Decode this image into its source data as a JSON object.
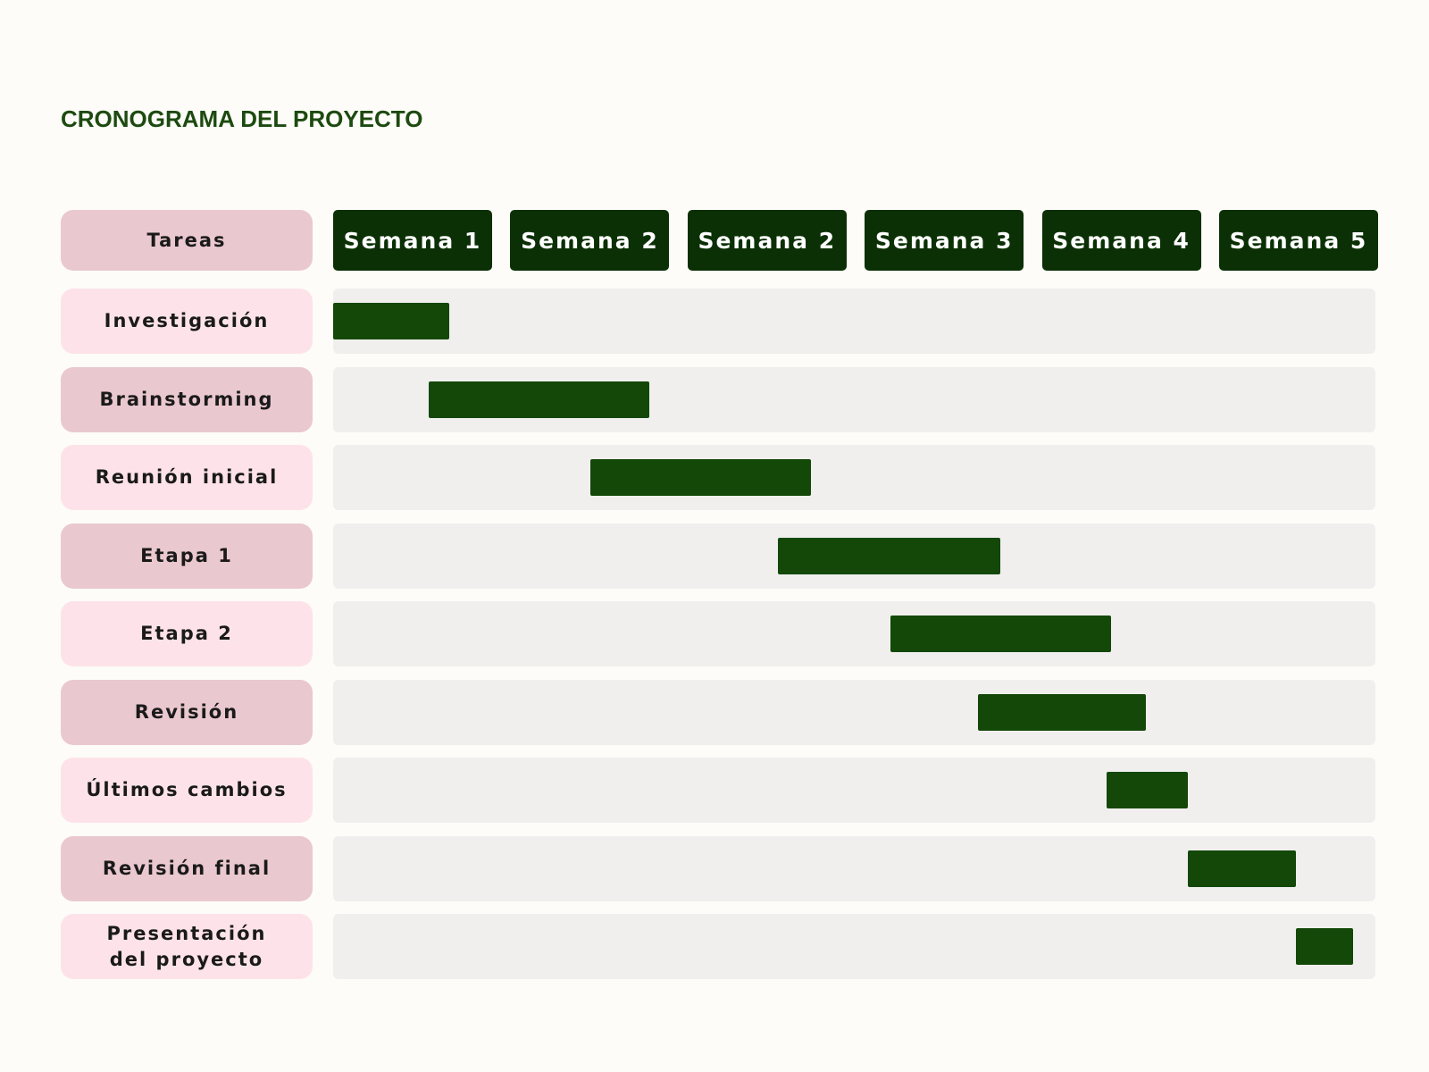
{
  "title": "CRONOGRAMA DEL PROYECTO",
  "tasks_header": "Tareas",
  "weeks": [
    "Semana 1",
    "Semana 2",
    "Semana 2",
    "Semana 3",
    "Semana 4",
    "Semana 5"
  ],
  "colors": {
    "title": "#1d4a10",
    "week_header_bg": "#0b3005",
    "bar": "#134808",
    "task_dark": "#eac8cf",
    "task_light": "#fde3e9",
    "track": "#f0efee"
  },
  "chart_data": {
    "type": "gantt",
    "tasks": [
      {
        "label": "Investigación",
        "start": 0.0,
        "end": 0.67
      },
      {
        "label": "Brainstorming",
        "start": 0.55,
        "end": 1.82
      },
      {
        "label": "Reunión inicial",
        "start": 1.48,
        "end": 2.75
      },
      {
        "label": "Etapa 1",
        "start": 2.56,
        "end": 3.84
      },
      {
        "label": "Etapa 2",
        "start": 3.21,
        "end": 4.48
      },
      {
        "label": "Revisión",
        "start": 3.71,
        "end": 4.68
      },
      {
        "label": "Últimos cambios",
        "start": 4.45,
        "end": 4.92
      },
      {
        "label": "Revisión final",
        "start": 4.92,
        "end": 5.54
      },
      {
        "label": "Presentación\ndel proyecto",
        "start": 5.54,
        "end": 5.87
      }
    ]
  }
}
